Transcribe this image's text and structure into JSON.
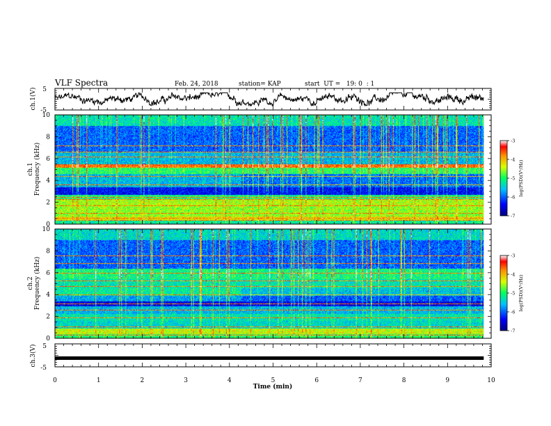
{
  "header": {
    "title": "VLF Spectra",
    "date": "Feb. 24, 2018",
    "station": "station= KAP",
    "start": "start  UT =   19: 0  : 1"
  },
  "chart_data": [
    {
      "id": "ch1-waveform",
      "type": "line",
      "ylabel": "ch.1(V)",
      "ylim": [
        -5,
        5
      ],
      "yticks": [
        "5",
        "-5"
      ],
      "xlim": [
        0,
        10
      ],
      "x_data_end": 9.83,
      "series": [
        {
          "style": "noisy waveform",
          "min": -3,
          "max": 3,
          "color": "#000000"
        }
      ]
    },
    {
      "id": "ch1-spectrogram",
      "type": "heatmap",
      "ylabel": "ch.1\nFrequency (kHz)",
      "ylim": [
        0,
        10
      ],
      "yticks": [
        "0",
        "2",
        "4",
        "6",
        "8",
        "10"
      ],
      "xlim": [
        0,
        10
      ],
      "x_data_end": 9.83,
      "colorbar": {
        "label": "log(PSD)(V²/Hz)",
        "range": [
          -7,
          -3
        ],
        "ticks": [
          "-3",
          "-4",
          "-5",
          "-6",
          "-7"
        ]
      },
      "bands_khz": [
        [
          0.0,
          0.3,
          -5.2
        ],
        [
          0.3,
          0.7,
          -4.3
        ],
        [
          0.7,
          1.6,
          -4.6
        ],
        [
          1.6,
          2.2,
          -4.5
        ],
        [
          2.2,
          2.7,
          -5.1
        ],
        [
          2.7,
          3.4,
          -6.4
        ],
        [
          3.4,
          4.6,
          -5.6
        ],
        [
          4.6,
          5.2,
          -5.0
        ],
        [
          5.2,
          5.5,
          -3.7
        ],
        [
          5.5,
          6.6,
          -5.6
        ],
        [
          6.6,
          9.0,
          -6.0
        ],
        [
          9.0,
          10.0,
          -5.3
        ]
      ],
      "lines_khz": [
        0.4,
        0.6,
        1.0,
        1.7,
        2.3,
        2.5,
        3.6,
        4.4,
        5.2,
        5.4,
        6.2,
        6.6,
        7.2
      ]
    },
    {
      "id": "ch2-spectrogram",
      "type": "heatmap",
      "ylabel": "ch.2\nFrequency (kHz)",
      "ylim": [
        0,
        10
      ],
      "yticks": [
        "0",
        "2",
        "4",
        "6",
        "8",
        "10"
      ],
      "xlim": [
        0,
        10
      ],
      "x_data_end": 9.83,
      "colorbar": {
        "label": "log(PSD)(V²/Hz)",
        "range": [
          -7,
          -3
        ],
        "ticks": [
          "-3",
          "-4",
          "-5",
          "-6",
          "-7"
        ]
      },
      "bands_khz": [
        [
          0.0,
          0.4,
          -5.0
        ],
        [
          0.4,
          0.9,
          -4.4
        ],
        [
          0.9,
          1.6,
          -5.4
        ],
        [
          1.6,
          2.2,
          -5.3
        ],
        [
          2.2,
          2.9,
          -5.6
        ],
        [
          2.9,
          3.4,
          -6.5
        ],
        [
          3.4,
          3.9,
          -5.7
        ],
        [
          3.9,
          4.6,
          -5.2
        ],
        [
          4.6,
          5.4,
          -5.3
        ],
        [
          5.4,
          6.4,
          -5.1
        ],
        [
          6.4,
          9.0,
          -6.0
        ],
        [
          9.0,
          10.0,
          -5.4
        ]
      ],
      "lines_khz": [
        0.3,
        1.1,
        1.9,
        2.6,
        3.2,
        4.0,
        4.8,
        5.3,
        6.0,
        6.9,
        7.6
      ]
    },
    {
      "id": "ch3-waveform",
      "type": "line",
      "ylabel": "ch.3(V)",
      "ylim": [
        -5,
        5
      ],
      "yticks": [
        "5",
        "-5"
      ],
      "xlim": [
        0,
        10
      ],
      "x_data_end": 9.83,
      "series": [
        {
          "style": "flat saturated",
          "value": -1.2,
          "color": "#000000"
        }
      ]
    }
  ],
  "xaxis": {
    "label": "Time (min)",
    "ticks": [
      "0",
      "1",
      "2",
      "3",
      "4",
      "5",
      "6",
      "7",
      "8",
      "9",
      "10"
    ],
    "range": [
      0,
      10
    ]
  }
}
